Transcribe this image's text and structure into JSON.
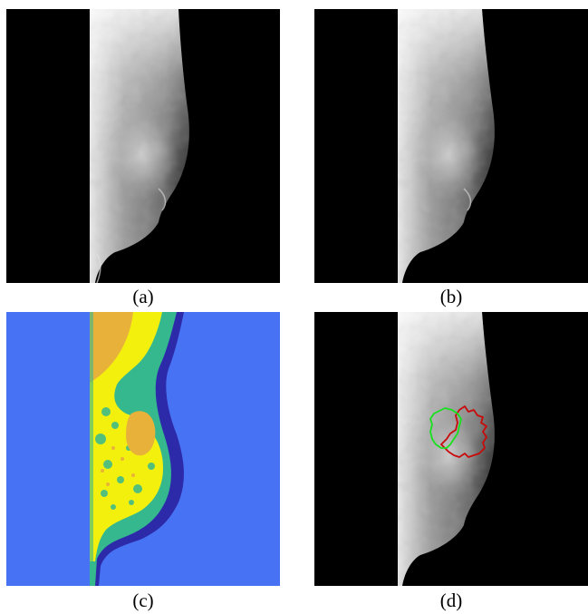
{
  "panels": [
    {
      "id": "a",
      "caption": "(a)",
      "content": "mammogram-original"
    },
    {
      "id": "b",
      "caption": "(b)",
      "content": "mammogram-preprocessed"
    },
    {
      "id": "c",
      "caption": "(c)",
      "content": "mammogram-clustered-segmentation"
    },
    {
      "id": "d",
      "caption": "(d)",
      "content": "mammogram-with-contours"
    }
  ],
  "colors": {
    "background_black": "#000000",
    "cluster_background": "#4872f4",
    "cluster_dark_blue": "#2c2aa8",
    "cluster_teal": "#36b88e",
    "cluster_yellow": "#f4f00e",
    "cluster_orange": "#e8b23a",
    "contour_green": "#16e21c",
    "contour_red": "#c80a0a"
  }
}
